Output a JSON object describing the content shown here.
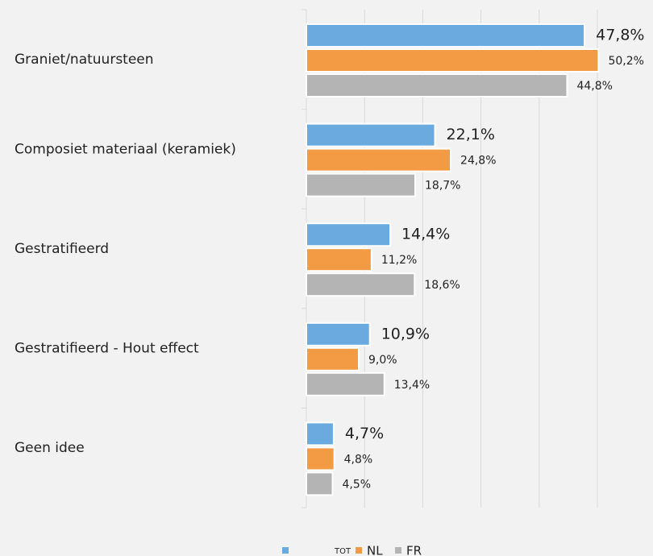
{
  "chart_data": {
    "type": "hbar",
    "categories": [
      "Graniet/natuursteen",
      "Composiet materiaal (keramiek)",
      "Gestratifieerd",
      "Gestratifieerd - Hout effect",
      "Geen idee"
    ],
    "series": [
      {
        "name": "TOT",
        "color": "#6aaadf",
        "values": [
          47.8,
          22.1,
          14.4,
          10.9,
          4.7
        ],
        "value_labels": [
          "47,8%",
          "22,1%",
          "14,4%",
          "10,9%",
          "4,7%"
        ]
      },
      {
        "name": "NL",
        "color": "#f39a45",
        "values": [
          50.2,
          24.8,
          11.2,
          9.0,
          4.8
        ],
        "value_labels": [
          "50,2%",
          "24,8%",
          "11,2%",
          "9,0%",
          "4,8%"
        ]
      },
      {
        "name": "FR",
        "color": "#b4b4b4",
        "values": [
          44.8,
          18.7,
          18.6,
          13.4,
          4.5
        ],
        "value_labels": [
          "44,8%",
          "18,7%",
          "18,6%",
          "13,4%",
          "4,5%"
        ]
      }
    ],
    "xlim": [
      0,
      50
    ],
    "xticks": [
      0,
      10,
      20,
      30,
      40,
      50
    ],
    "grid": true,
    "legend": "bottom"
  }
}
